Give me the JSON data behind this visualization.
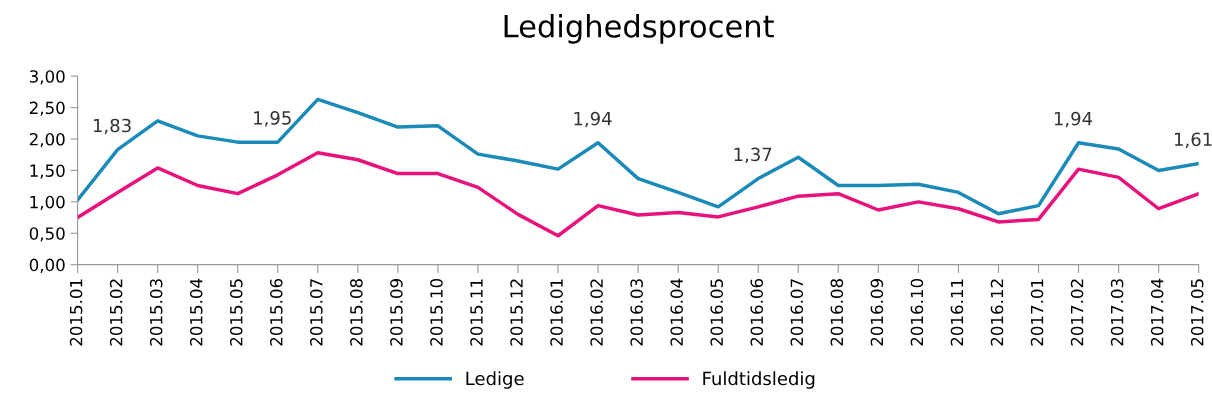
{
  "chart_data": {
    "type": "line",
    "title": "Ledighedsprocent",
    "categories": [
      "2015.01",
      "2015.02",
      "2015.03",
      "2015.04",
      "2015.05",
      "2015.06",
      "2015.07",
      "2015.08",
      "2015.09",
      "2015.10",
      "2015.11",
      "2015.12",
      "2016.01",
      "2016.02",
      "2016.03",
      "2016.04",
      "2016.05",
      "2016.06",
      "2016.07",
      "2016.08",
      "2016.09",
      "2016.10",
      "2016.11",
      "2016.12",
      "2017.01",
      "2017.02",
      "2017.03",
      "2017.04",
      "2017.05"
    ],
    "series": [
      {
        "name": "Ledige",
        "color": "#1a8ab8",
        "values": [
          1.03,
          1.83,
          2.29,
          2.05,
          1.95,
          1.95,
          2.63,
          2.42,
          2.19,
          2.21,
          1.76,
          1.65,
          1.52,
          1.94,
          1.37,
          1.15,
          0.92,
          1.37,
          1.71,
          1.26,
          1.26,
          1.28,
          1.15,
          0.81,
          0.94,
          1.94,
          1.84,
          1.5,
          1.61
        ],
        "value_labels": [
          null,
          "1,83",
          null,
          null,
          null,
          "1,95",
          null,
          null,
          null,
          null,
          null,
          null,
          null,
          "1,94",
          null,
          null,
          null,
          "1,37",
          null,
          null,
          null,
          null,
          null,
          null,
          null,
          "1,94",
          null,
          null,
          "1,61"
        ]
      },
      {
        "name": "Fuldtidsledig",
        "color": "#e8127c",
        "values": [
          0.75,
          1.15,
          1.54,
          1.26,
          1.13,
          1.43,
          1.78,
          1.67,
          1.45,
          1.45,
          1.23,
          0.8,
          0.46,
          0.94,
          0.79,
          0.83,
          0.76,
          0.92,
          1.09,
          1.13,
          0.87,
          1.0,
          0.89,
          0.68,
          0.72,
          1.52,
          1.39,
          0.89,
          1.13
        ]
      }
    ],
    "ylim": [
      0,
      3
    ],
    "yticks": [
      {
        "value": 0,
        "label": "0,00"
      },
      {
        "value": 0.5,
        "label": "0,50"
      },
      {
        "value": 1,
        "label": "1,00"
      },
      {
        "value": 1.5,
        "label": "1,50"
      },
      {
        "value": 2,
        "label": "2,00"
      },
      {
        "value": 2.5,
        "label": "2,50"
      },
      {
        "value": 3,
        "label": "3,00"
      }
    ],
    "grid": false,
    "legend": "bottom",
    "marker": "none",
    "line_style": "solid"
  }
}
